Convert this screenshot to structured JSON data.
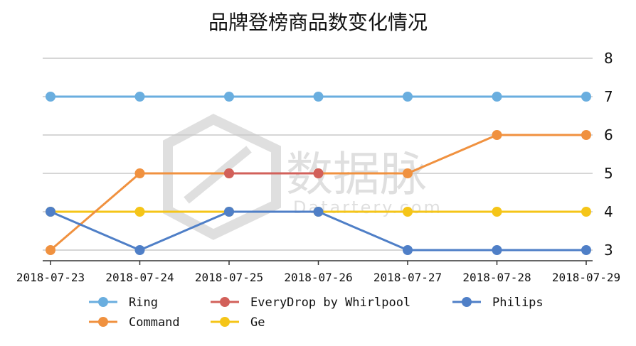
{
  "chart_data": {
    "type": "line",
    "title": "品牌登榜商品数变化情况",
    "categories": [
      "2018-07-23",
      "2018-07-24",
      "2018-07-25",
      "2018-07-26",
      "2018-07-27",
      "2018-07-28",
      "2018-07-29"
    ],
    "ylim": [
      3,
      8
    ],
    "yticks": [
      3,
      4,
      5,
      6,
      7,
      8
    ],
    "grid": true,
    "y_axis_side": "right",
    "legend_position": "bottom",
    "series": [
      {
        "name": "Ring",
        "color": "#6aaedf",
        "values": [
          7,
          7,
          7,
          7,
          7,
          7,
          7
        ]
      },
      {
        "name": "Command",
        "color": "#f0913f",
        "values": [
          3,
          5,
          5,
          5,
          5,
          6,
          6
        ]
      },
      {
        "name": "EveryDrop by Whirlpool",
        "color": "#d2605a",
        "values": [
          null,
          null,
          5,
          5,
          null,
          null,
          null
        ]
      },
      {
        "name": "Ge",
        "color": "#f5c518",
        "values": [
          4,
          4,
          4,
          4,
          4,
          4,
          4
        ]
      },
      {
        "name": "Philips",
        "color": "#4f7fc7",
        "values": [
          4,
          3,
          4,
          4,
          3,
          3,
          3
        ]
      }
    ],
    "watermark": {
      "text": "数据脉",
      "subtext": "Datartery.com"
    }
  }
}
